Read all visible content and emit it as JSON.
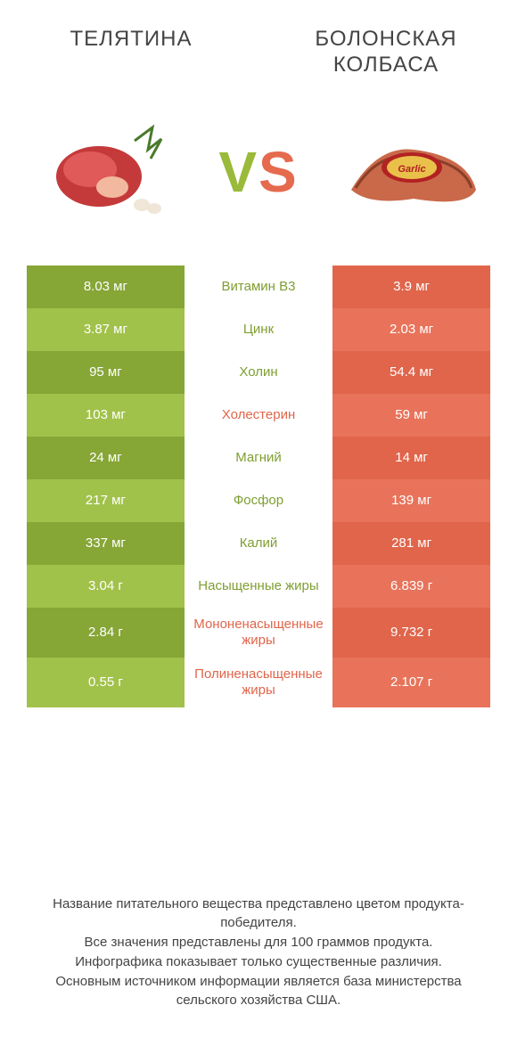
{
  "header": {
    "left_title": "ТЕЛЯТИНА",
    "right_title": "БОЛОНСКАЯ КОЛБАСА",
    "vs_v": "V",
    "vs_s": "S"
  },
  "palette": {
    "green_dark": "#86a636",
    "green_light": "#a1c24a",
    "orange_dark": "#e0654b",
    "orange_light": "#e8735a",
    "mid_green_text": "#7f9e32",
    "mid_orange_text": "#e0654b",
    "white": "#ffffff"
  },
  "rows": [
    {
      "label": "Витамин B3",
      "left": "8.03 мг",
      "right": "3.9 мг",
      "winner": "left"
    },
    {
      "label": "Цинк",
      "left": "3.87 мг",
      "right": "2.03 мг",
      "winner": "left"
    },
    {
      "label": "Холин",
      "left": "95 мг",
      "right": "54.4 мг",
      "winner": "left"
    },
    {
      "label": "Холестерин",
      "left": "103 мг",
      "right": "59 мг",
      "winner": "right"
    },
    {
      "label": "Магний",
      "left": "24 мг",
      "right": "14 мг",
      "winner": "left"
    },
    {
      "label": "Фосфор",
      "left": "217 мг",
      "right": "139 мг",
      "winner": "left"
    },
    {
      "label": "Калий",
      "left": "337 мг",
      "right": "281 мг",
      "winner": "left"
    },
    {
      "label": "Насыщенные жиры",
      "left": "3.04 г",
      "right": "6.839 г",
      "winner": "left"
    },
    {
      "label": "Мононенасыщенные жиры",
      "left": "2.84 г",
      "right": "9.732 г",
      "winner": "right"
    },
    {
      "label": "Полиненасыщенные жиры",
      "left": "0.55 г",
      "right": "2.107 г",
      "winner": "right"
    }
  ],
  "footer": {
    "line1": "Название питательного вещества представлено цветом продукта-победителя.",
    "line2": "Все значения представлены для 100 граммов продукта.",
    "line3": "Инфографика показывает только существенные различия.",
    "line4": "Основным источником информации является база министерства сельского хозяйства США."
  }
}
